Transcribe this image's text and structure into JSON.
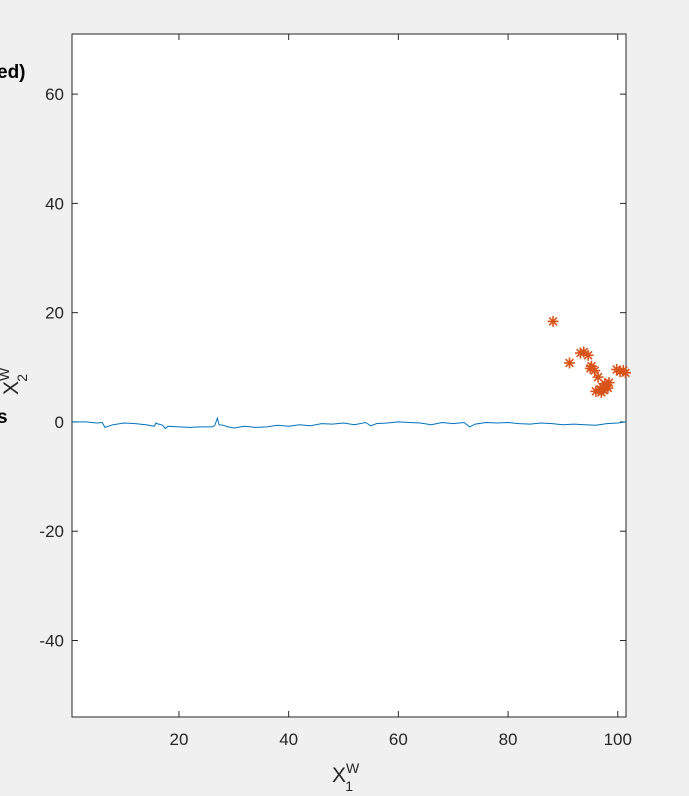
{
  "figure": {
    "clipped_left_labels": [
      "ed)",
      "s"
    ]
  },
  "chart_data": {
    "type": "line",
    "title": "",
    "xlabel": {
      "base": "X",
      "sup": "W",
      "sub": "1"
    },
    "ylabel": {
      "base": "X",
      "sup": "W",
      "sub": "2"
    },
    "xlim": [
      0.5,
      101.5
    ],
    "ylim": [
      -54,
      71
    ],
    "xticks": [
      20,
      40,
      60,
      80,
      100
    ],
    "yticks": [
      -40,
      -20,
      0,
      20,
      40,
      60
    ],
    "grid": false,
    "legend": "none",
    "colors": {
      "line": "#0072BD",
      "markers": "#D95319",
      "axes": "#262626",
      "background": "#ffffff"
    },
    "series": [
      {
        "type": "line",
        "x": [
          0.5,
          3,
          5,
          6,
          6.5,
          8,
          10,
          12,
          14,
          15.5,
          15.8,
          16,
          17,
          17.5,
          18,
          20,
          22,
          24,
          26,
          26.5,
          27,
          27.3,
          28,
          29,
          30,
          32,
          34,
          36,
          38,
          40,
          42,
          44,
          46,
          48,
          50,
          52,
          54,
          55,
          56,
          58,
          60,
          62,
          64,
          66,
          68,
          70,
          72,
          73,
          74,
          76,
          78,
          80,
          82,
          84,
          86,
          88,
          90,
          92,
          94,
          96,
          98,
          100,
          101.5
        ],
        "y": [
          0,
          0,
          -0.2,
          -0.1,
          -1,
          -0.5,
          -0.2,
          -0.3,
          -0.5,
          -0.8,
          -0.2,
          -0.3,
          -0.6,
          -1.2,
          -0.8,
          -0.9,
          -1.0,
          -0.9,
          -0.9,
          -0.7,
          0.7,
          -0.5,
          -0.6,
          -0.9,
          -1.1,
          -0.8,
          -1.0,
          -0.9,
          -0.6,
          -0.8,
          -0.5,
          -0.7,
          -0.3,
          -0.4,
          -0.2,
          -0.5,
          -0.1,
          -0.7,
          -0.3,
          -0.2,
          0,
          -0.1,
          -0.2,
          -0.5,
          -0.1,
          -0.3,
          -0.1,
          -0.9,
          -0.4,
          -0.1,
          -0.2,
          -0.1,
          -0.3,
          -0.4,
          -0.2,
          -0.3,
          -0.5,
          -0.4,
          -0.5,
          -0.6,
          -0.3,
          -0.2,
          0
        ]
      },
      {
        "type": "scatter",
        "marker": "asterisk",
        "x": [
          88.2,
          91.2,
          93.2,
          93.8,
          94.6,
          95.2,
          95.0,
          95.8,
          96.4,
          96.0,
          96.8,
          97.2,
          97.6,
          98.0,
          97.0,
          97.4,
          98.2,
          98.4,
          99.8,
          100.4,
          101.0,
          101.4
        ],
        "y": [
          18.4,
          10.8,
          12.6,
          12.8,
          12.2,
          10.2,
          9.8,
          9.4,
          8.2,
          5.6,
          6.0,
          6.4,
          7.0,
          6.6,
          5.4,
          5.8,
          6.2,
          7.2,
          9.6,
          9.2,
          9.4,
          9.0
        ]
      }
    ]
  }
}
